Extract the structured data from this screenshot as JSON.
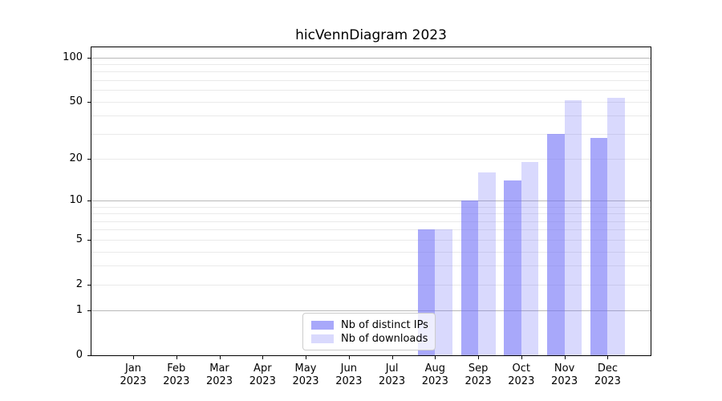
{
  "chart_data": {
    "type": "bar",
    "title": "hicVennDiagram 2023",
    "categories": [
      "Jan",
      "Feb",
      "Mar",
      "Apr",
      "May",
      "Jun",
      "Jul",
      "Aug",
      "Sep",
      "Oct",
      "Nov",
      "Dec"
    ],
    "category_year": "2023",
    "series": [
      {
        "name": "Nb of distinct IPs",
        "color": "#a8a8f8",
        "fill": "rgba(110,110,247,0.60)",
        "values": [
          0,
          0,
          0,
          0,
          0,
          0,
          0,
          6,
          10,
          14,
          30,
          28
        ]
      },
      {
        "name": "Nb of downloads",
        "color": "#dcdcf9",
        "fill": "rgba(110,110,247,0.26)",
        "values": [
          0,
          0,
          0,
          0,
          0,
          0,
          0,
          6,
          16,
          19,
          51,
          53
        ]
      }
    ],
    "yscale": "log10(value+1)",
    "ylim": [
      0,
      117
    ],
    "y_ticks": [
      0,
      1,
      2,
      5,
      10,
      20,
      50,
      100
    ],
    "major_grid_values": [
      1,
      10,
      100
    ],
    "minor_grid_values": [
      2,
      3,
      4,
      5,
      6,
      7,
      8,
      9,
      20,
      30,
      40,
      50,
      60,
      70,
      80,
      90
    ],
    "grid": "on",
    "legend_position": "lower center-left",
    "xlabel": "",
    "ylabel": ""
  },
  "legend": {
    "entries": [
      "Nb of distinct IPs",
      "Nb of downloads"
    ]
  },
  "colors": {
    "background": "#ffffff",
    "spine": "#000000",
    "major_grid": "#b8b8b8",
    "minor_grid": "#eaeaea",
    "bar_dark": "#a8a8f8",
    "bar_light": "#dcdcf9"
  }
}
